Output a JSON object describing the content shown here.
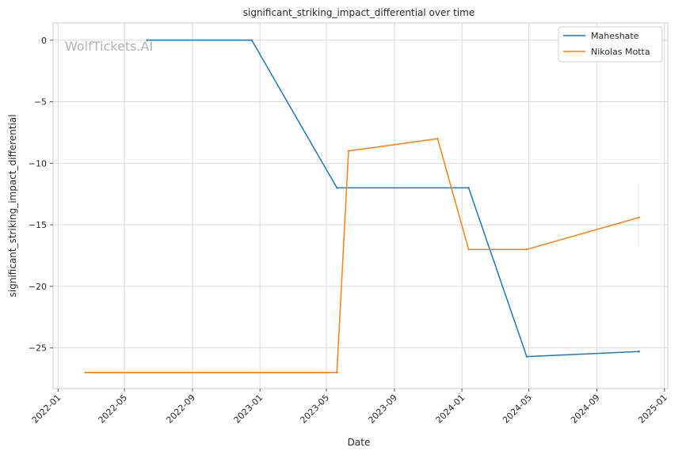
{
  "chart_data": {
    "type": "line",
    "title": "significant_striking_impact_differential over time",
    "xlabel": "Date",
    "ylabel": "significant_striking_impact_differential",
    "watermark": "WolfTickets.AI",
    "x_ticks": [
      "2022-01",
      "2022-05",
      "2022-09",
      "2023-01",
      "2023-05",
      "2023-09",
      "2024-01",
      "2024-05",
      "2024-09",
      "2025-01"
    ],
    "y_ticks": [
      0,
      -5,
      -10,
      -15,
      -20,
      -25
    ],
    "y_tick_labels": [
      "0",
      "−5",
      "−10",
      "−15",
      "−20",
      "−25"
    ],
    "xlim": [
      "2021-12-23",
      "2025-01-07"
    ],
    "ylim": [
      -28.3,
      1.4
    ],
    "grid": true,
    "legend_position": "top-right",
    "series": [
      {
        "name": "Maheshate",
        "color": "#1f77b4",
        "points": [
          {
            "x": "2022-06-11",
            "y": 0
          },
          {
            "x": "2022-12-17",
            "y": 0
          },
          {
            "x": "2023-05-20",
            "y": -12
          },
          {
            "x": "2024-01-13",
            "y": -12
          },
          {
            "x": "2024-04-27",
            "y": -25.7
          },
          {
            "x": "2024-11-16",
            "y": -25.3
          }
        ]
      },
      {
        "name": "Nikolas Motta",
        "color": "#ff7f0e",
        "points": [
          {
            "x": "2022-02-19",
            "y": -27
          },
          {
            "x": "2023-05-20",
            "y": -27
          },
          {
            "x": "2023-06-10",
            "y": -9
          },
          {
            "x": "2023-11-18",
            "y": -8
          },
          {
            "x": "2024-01-13",
            "y": -17
          },
          {
            "x": "2024-04-27",
            "y": -17
          },
          {
            "x": "2024-11-16",
            "y": -14.4
          }
        ]
      }
    ]
  }
}
